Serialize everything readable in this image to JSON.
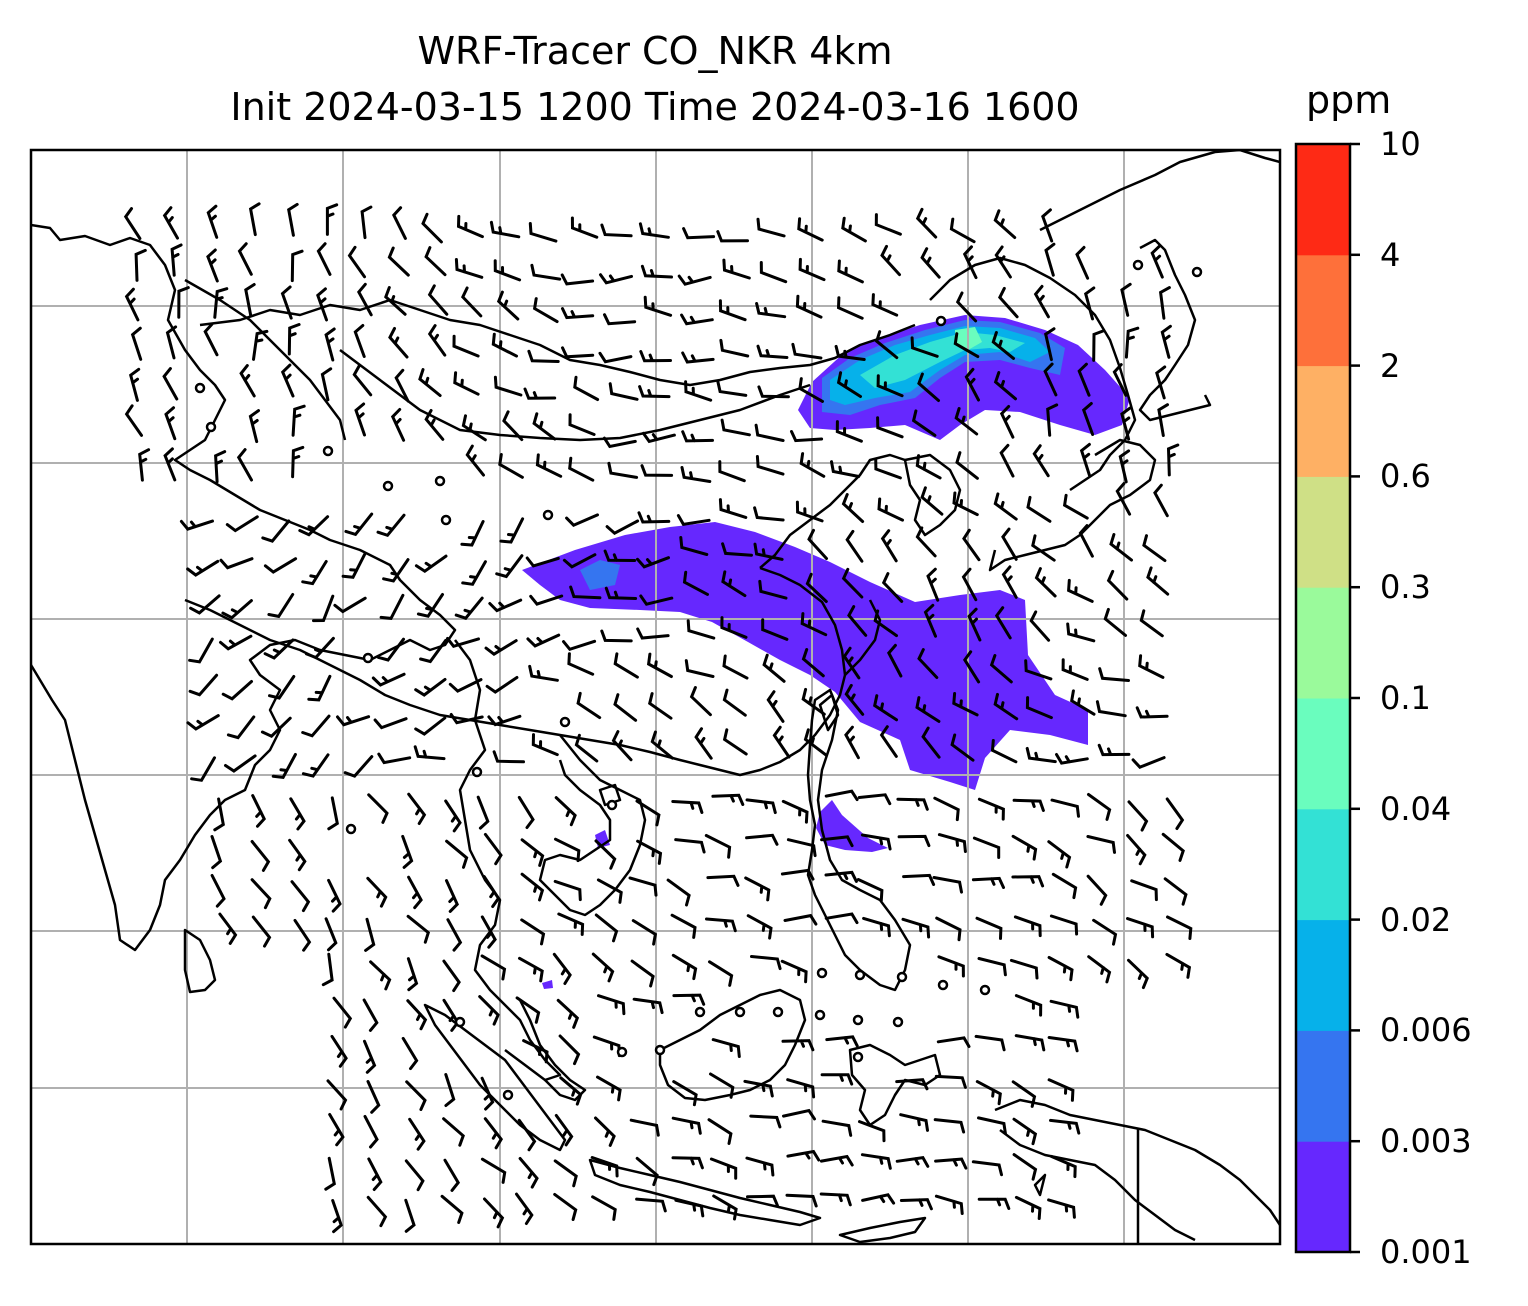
{
  "title": {
    "line1": "WRF-Tracer CO_NKR 4km",
    "line2": "Init 2024-03-15 1200 Time 2024-03-16 1600"
  },
  "colorbar": {
    "unit": "ppm",
    "ticks": [
      "0.001",
      "0.003",
      "0.006",
      "0.02",
      "0.04",
      "0.1",
      "0.3",
      "0.6",
      "2",
      "4",
      "10"
    ],
    "colors": [
      "#6628fe",
      "#3575f0",
      "#06b1ea",
      "#33e1d5",
      "#6afdbe",
      "#9afa9b",
      "#cfe086",
      "#feb064",
      "#fe703a",
      "#fe2a15"
    ]
  },
  "map": {
    "gridline_color": "#b0b0b0",
    "coastline_color": "#000000",
    "wind_barb_color": "#000000"
  }
}
